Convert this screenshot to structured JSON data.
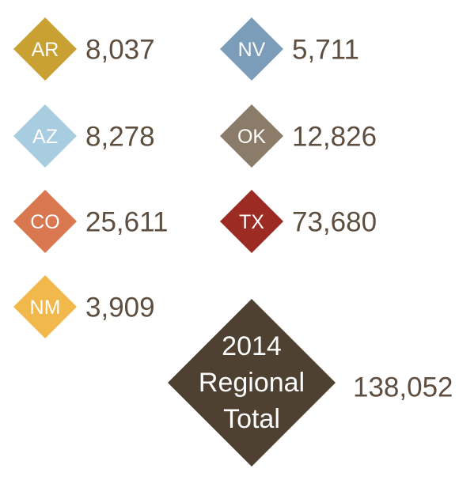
{
  "items": [
    {
      "state": "AR",
      "value": "8,037",
      "color": "#c9a032"
    },
    {
      "state": "AZ",
      "value": "8,278",
      "color": "#a8cde0"
    },
    {
      "state": "CO",
      "value": "25,611",
      "color": "#d97850"
    },
    {
      "state": "NM",
      "value": "3,909",
      "color": "#f1b94c"
    },
    {
      "state": "NV",
      "value": "5,711",
      "color": "#7b9db9"
    },
    {
      "state": "OK",
      "value": "12,826",
      "color": "#8b7b69"
    },
    {
      "state": "TX",
      "value": "73,680",
      "color": "#9c2b23"
    }
  ],
  "total": {
    "lines": [
      "2014",
      "Regional",
      "Total"
    ],
    "value": "138,052",
    "color": "#4f4131"
  }
}
